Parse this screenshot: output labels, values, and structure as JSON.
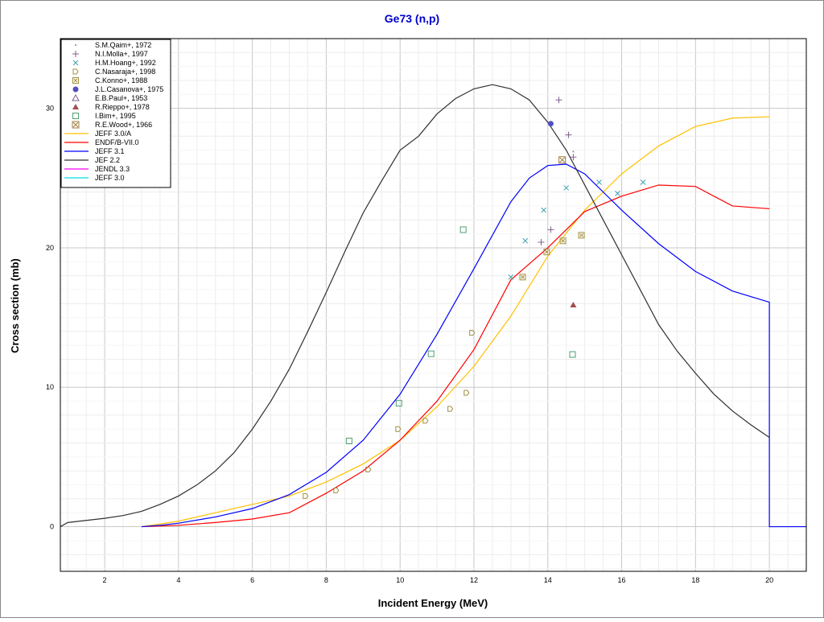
{
  "chart_data": {
    "type": "line",
    "title": "Ge73 (n,p)",
    "xlabel": "Incident Energy (MeV)",
    "ylabel": "Cross section (mb)",
    "xlim": [
      0.8,
      21
    ],
    "ylim": [
      -3.2,
      35
    ],
    "xticks": [
      2,
      4,
      6,
      8,
      10,
      12,
      14,
      16,
      18,
      20
    ],
    "yticks": [
      0,
      10,
      20,
      30
    ],
    "grid": true,
    "legend_position": "top-left",
    "series": [
      {
        "name": "JEFF 3.0/A",
        "color": "#ffc000",
        "x": [
          3,
          4,
          5,
          6,
          7,
          8,
          9,
          10,
          11,
          12,
          13,
          14,
          15,
          16,
          17,
          18,
          19,
          20
        ],
        "y": [
          0,
          0.4,
          1.0,
          1.6,
          2.2,
          3.2,
          4.5,
          6.2,
          8.6,
          11.5,
          15.1,
          19.4,
          22.7,
          25.3,
          27.3,
          28.7,
          29.3,
          29.4
        ]
      },
      {
        "name": "ENDF/B-VII.0",
        "color": "#ff0000",
        "x": [
          3,
          4,
          5,
          6,
          7,
          8,
          9,
          10,
          11,
          12,
          13,
          14,
          15,
          16,
          17,
          18,
          19,
          20
        ],
        "y": [
          0,
          0.1,
          0.3,
          0.55,
          1.0,
          2.4,
          4.0,
          6.2,
          9.0,
          12.7,
          17.7,
          20.0,
          22.6,
          23.7,
          24.5,
          24.4,
          23.0,
          22.8
        ]
      },
      {
        "name": "JEFF 3.1",
        "color": "#0000ff",
        "x": [
          3,
          3.5,
          4,
          5,
          6,
          7,
          8,
          9,
          10,
          11,
          12,
          13,
          13.5,
          14,
          14.5,
          15,
          16,
          17,
          18,
          19,
          20,
          20,
          21
        ],
        "y": [
          0,
          0.1,
          0.25,
          0.7,
          1.3,
          2.3,
          3.9,
          6.2,
          9.5,
          13.8,
          18.5,
          23.3,
          25,
          25.9,
          26,
          25.3,
          22.7,
          20.3,
          18.3,
          16.9,
          16.1,
          0,
          0
        ]
      },
      {
        "name": "JEF 2.2",
        "color": "#303030",
        "x": [
          0.8,
          1,
          2,
          2.5,
          3,
          3.5,
          4,
          4.5,
          5,
          5.5,
          6,
          6.5,
          7,
          7.5,
          8,
          8.5,
          9,
          9.5,
          10,
          10.5,
          11,
          11.5,
          12,
          12.5,
          13,
          13.5,
          14,
          14.5,
          15,
          15.5,
          16,
          16.5,
          17,
          17.5,
          18,
          18.5,
          19,
          19.5,
          20
        ],
        "y": [
          0,
          0.3,
          0.6,
          0.8,
          1.1,
          1.6,
          2.2,
          3.0,
          4.0,
          5.3,
          7.0,
          9.0,
          11.3,
          14,
          16.8,
          19.7,
          22.5,
          24.8,
          27,
          28,
          29.6,
          30.7,
          31.4,
          31.7,
          31.4,
          30.6,
          29,
          27,
          24.5,
          22,
          19.5,
          17,
          14.5,
          12.6,
          11,
          9.5,
          8.3,
          7.3,
          6.4
        ]
      },
      {
        "name": "JENDL 3.3",
        "color": "#ff00ff",
        "x": [],
        "y": []
      },
      {
        "name": "JEFF 3.0",
        "color": "#00e0e0",
        "x": [],
        "y": []
      }
    ],
    "points": [
      {
        "name": "S.M.Qaim+, 1972",
        "marker": "dot",
        "color": "#8080a0",
        "x": [
          14.69
        ],
        "y": [
          26.9
        ]
      },
      {
        "name": "N.I.Molla+, 1997",
        "marker": "plus",
        "color": "#806090",
        "x": [
          14.3,
          14.56,
          14.69,
          13.82,
          14.08
        ],
        "y": [
          30.6,
          28.1,
          26.5,
          20.4,
          21.3
        ]
      },
      {
        "name": "H.M.Hoang+, 1992",
        "marker": "cross",
        "color": "#40a0b0",
        "x": [
          13.0,
          13.39,
          13.89,
          14.5,
          15.39,
          15.89,
          16.58
        ],
        "y": [
          17.9,
          20.5,
          22.7,
          24.3,
          24.7,
          23.9,
          24.7
        ]
      },
      {
        "name": "C.Nasaraja+, 1998",
        "marker": "pentagon",
        "color": "#a09040",
        "x": [
          7.44,
          8.27,
          9.14,
          9.95,
          10.69,
          11.36,
          11.8,
          11.95
        ],
        "y": [
          2.2,
          2.6,
          4.1,
          7.0,
          7.6,
          8.45,
          9.6,
          13.9
        ]
      },
      {
        "name": "C.Konno+, 1988",
        "marker": "circlex",
        "color": "#a09040",
        "x": [
          13.32,
          13.97,
          14.41,
          14.91
        ],
        "y": [
          17.9,
          19.7,
          20.5,
          20.9
        ]
      },
      {
        "name": "J.L.Casanova+, 1975",
        "marker": "disc",
        "color": "#5050c0",
        "x": [
          14.08
        ],
        "y": [
          28.9
        ]
      },
      {
        "name": "E.B.Paul+, 1953",
        "marker": "triangle-open",
        "color": "#806090",
        "x": [],
        "y": []
      },
      {
        "name": "R.Rieppo+, 1978",
        "marker": "triangle",
        "color": "#a05050",
        "x": [
          14.69
        ],
        "y": [
          15.9
        ]
      },
      {
        "name": "I.Bim+, 1995",
        "marker": "square",
        "color": "#50a070",
        "x": [
          8.62,
          9.97,
          10.84,
          11.71,
          14.67
        ],
        "y": [
          6.15,
          8.85,
          12.4,
          21.3,
          12.35
        ]
      },
      {
        "name": "R.E.Wood+, 1966",
        "marker": "squarex",
        "color": "#a08040",
        "x": [
          14.39
        ],
        "y": [
          26.3
        ]
      }
    ]
  }
}
